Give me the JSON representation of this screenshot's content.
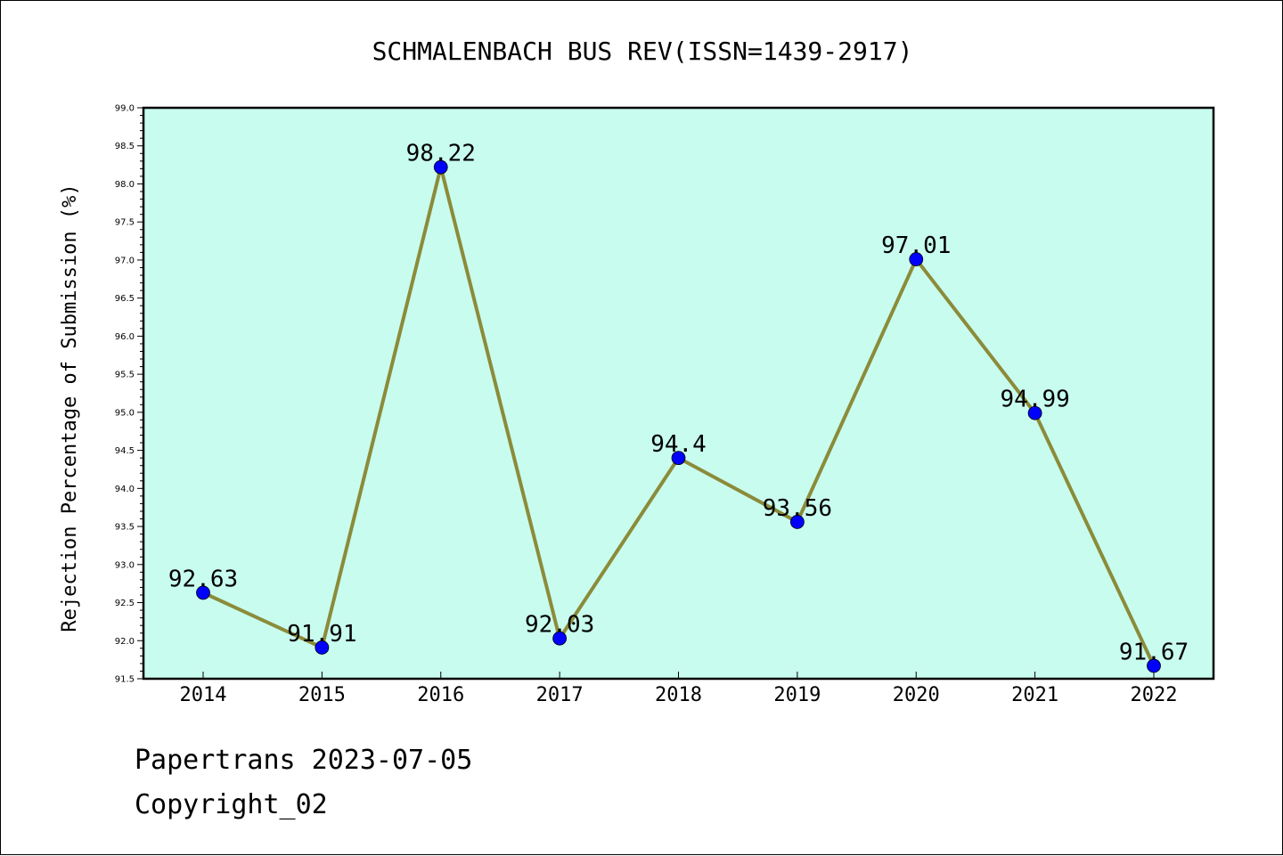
{
  "chart_data": {
    "type": "line",
    "title": "SCHMALENBACH BUS REV(ISSN=1439-2917)",
    "xlabel": "",
    "ylabel": "Rejection Percentage of Submission (%)",
    "categories": [
      "2014",
      "2015",
      "2016",
      "2017",
      "2018",
      "2019",
      "2020",
      "2021",
      "2022"
    ],
    "series": [
      {
        "values": [
          92.63,
          91.91,
          98.22,
          92.03,
          94.4,
          93.56,
          97.01,
          94.99,
          91.67
        ],
        "labels": [
          "92.63",
          "91.91",
          "98.22",
          "92.03",
          "94.4",
          "93.56",
          "97.01",
          "94.99",
          "91.67"
        ]
      }
    ],
    "ylim": [
      91.5,
      99.0
    ],
    "yticks": [
      "91.5",
      "92.0",
      "92.5",
      "93.0",
      "93.5",
      "94.0",
      "94.5",
      "95.0",
      "95.5",
      "96.0",
      "96.5",
      "97.0",
      "97.5",
      "98.0",
      "98.5",
      "99.0"
    ],
    "grid": false,
    "legend": "none",
    "colors": {
      "plot_background": "#c8fcee",
      "line": "#8b8b3a",
      "marker": "#0000ff"
    }
  },
  "footer": {
    "line1": "Papertrans 2023-07-05",
    "line2": "Copyright_02"
  }
}
